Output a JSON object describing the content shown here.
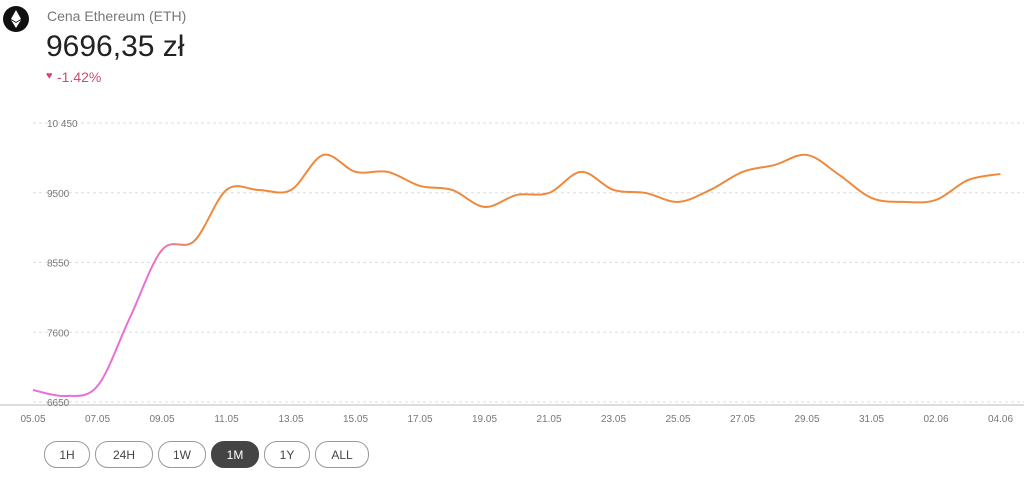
{
  "header": {
    "title": "Cena Ethereum (ETH)",
    "price": "9696,35 zł",
    "change": "-1.42%"
  },
  "buttons": [
    "1H",
    "24H",
    "1W",
    "1M",
    "1Y",
    "ALL"
  ],
  "active_button": "1M",
  "chart_data": {
    "type": "line",
    "categories": [
      "05.05",
      null,
      "07.05",
      null,
      "09.05",
      null,
      "11.05",
      null,
      "13.05",
      null,
      "15.05",
      null,
      "17.05",
      null,
      "19.05",
      null,
      "21.05",
      null,
      "23.05",
      null,
      "25.05",
      null,
      "27.05",
      null,
      "29.05",
      null,
      "31.05",
      null,
      "02.06",
      null,
      "04.06"
    ],
    "values": [
      6813,
      6732,
      6868,
      7794,
      8721,
      8843,
      9538,
      9538,
      9538,
      10015,
      9784,
      9784,
      9593,
      9538,
      9307,
      9470,
      9497,
      9784,
      9538,
      9497,
      9375,
      9538,
      9784,
      9879,
      10015,
      9743,
      9429,
      9375,
      9402,
      9674,
      9756
    ],
    "colors": [
      "#e86fd6",
      "#ee8a3e"
    ],
    "ylim": [
      6650,
      10450
    ],
    "yticks": [
      6650,
      7600,
      8550,
      9500,
      {
        "value": 10450,
        "label": "10 450"
      }
    ],
    "grid": true
  }
}
